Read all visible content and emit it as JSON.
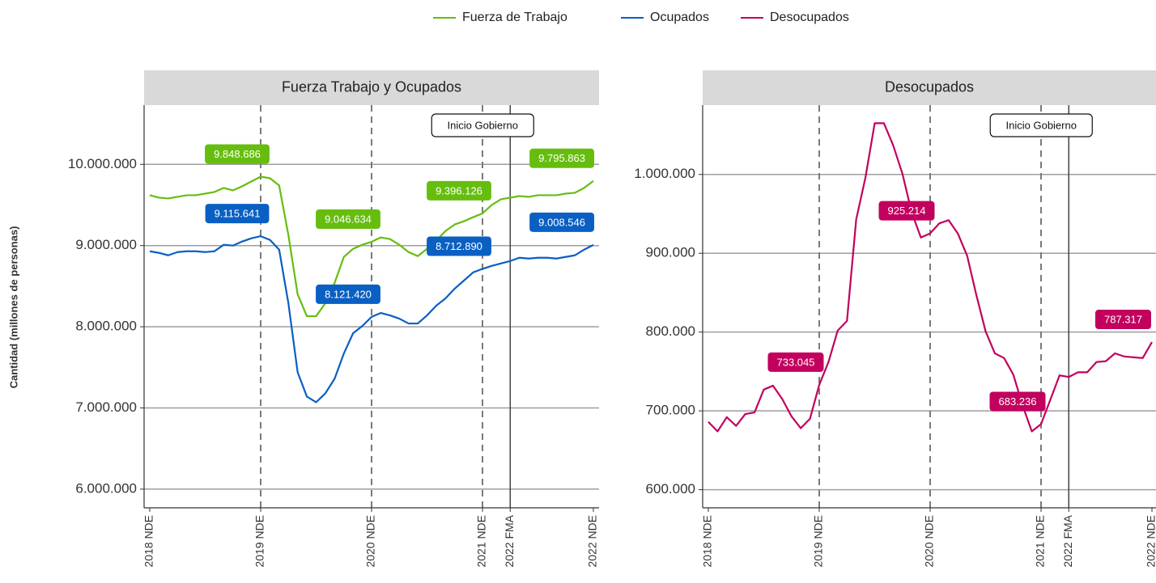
{
  "chart_data": [
    {
      "type": "line",
      "title": "Fuerza Trabajo y Ocupados",
      "ylabel": "Cantidad (millones de personas)",
      "categories": [
        "2018 NDE",
        null,
        null,
        null,
        null,
        null,
        null,
        null,
        null,
        null,
        null,
        null,
        "2019 NDE",
        null,
        null,
        null,
        null,
        null,
        null,
        null,
        null,
        null,
        null,
        null,
        "2020 NDE",
        null,
        null,
        null,
        null,
        null,
        null,
        null,
        null,
        null,
        null,
        null,
        "2021 NDE",
        null,
        null,
        "2022 FMA",
        null,
        null,
        null,
        null,
        null,
        null,
        null,
        null,
        "2022 NDE"
      ],
      "ylim": [
        5770000,
        10730000
      ],
      "yticks": [
        {
          "value": 6000000,
          "label": "6.000.000"
        },
        {
          "value": 7000000,
          "label": "7.000.000"
        },
        {
          "value": 8000000,
          "label": "8.000.000"
        },
        {
          "value": 9000000,
          "label": "9.000.000"
        },
        {
          "value": 10000000,
          "label": "10.000.000"
        }
      ],
      "grid": true,
      "dashed_lines": [
        "2019 NDE",
        "2020 NDE",
        "2021 NDE"
      ],
      "annotations": [
        {
          "text": "Inicio Gobierno",
          "x": "2022 FMA"
        }
      ],
      "series": [
        {
          "name": "Fuerza de Trabajo",
          "color": "#66bd0e",
          "values": [
            9620000,
            9590000,
            9580000,
            9600000,
            9620000,
            9620000,
            9640000,
            9660000,
            9710000,
            9680000,
            9730000,
            9790000,
            9848686,
            9830000,
            9740000,
            9130000,
            8400000,
            8130000,
            8130000,
            8290000,
            8540000,
            8860000,
            8960000,
            9010000,
            9046634,
            9100000,
            9080000,
            9010000,
            8920000,
            8870000,
            8960000,
            9060000,
            9180000,
            9260000,
            9300000,
            9350000,
            9396126,
            9500000,
            9570000,
            9590000,
            9610000,
            9600000,
            9620000,
            9620000,
            9620000,
            9640000,
            9650000,
            9710000,
            9795863
          ],
          "value_labels": [
            null,
            null,
            null,
            null,
            null,
            null,
            null,
            null,
            null,
            null,
            null,
            null,
            "9.848.686",
            null,
            null,
            null,
            null,
            null,
            null,
            null,
            null,
            null,
            null,
            null,
            "9.046.634",
            null,
            null,
            null,
            null,
            null,
            null,
            null,
            null,
            null,
            null,
            null,
            "9.396.126",
            null,
            null,
            null,
            null,
            null,
            null,
            null,
            null,
            null,
            null,
            null,
            "9.795.863"
          ]
        },
        {
          "name": "Ocupados",
          "color": "#0a5fc2",
          "values": [
            8930000,
            8910000,
            8880000,
            8920000,
            8930000,
            8930000,
            8920000,
            8930000,
            9010000,
            9000000,
            9050000,
            9090000,
            9115641,
            9070000,
            8950000,
            8290000,
            7440000,
            7140000,
            7070000,
            7180000,
            7360000,
            7670000,
            7920000,
            8010000,
            8121420,
            8170000,
            8140000,
            8100000,
            8040000,
            8040000,
            8140000,
            8260000,
            8350000,
            8470000,
            8570000,
            8670000,
            8712890,
            8750000,
            8780000,
            8810000,
            8850000,
            8840000,
            8850000,
            8850000,
            8840000,
            8860000,
            8880000,
            8950000,
            9008546
          ],
          "value_labels": [
            null,
            null,
            null,
            null,
            null,
            null,
            null,
            null,
            null,
            null,
            null,
            null,
            "9.115.641",
            null,
            null,
            null,
            null,
            null,
            null,
            null,
            null,
            null,
            null,
            null,
            "8.121.420",
            null,
            null,
            null,
            null,
            null,
            null,
            null,
            null,
            null,
            null,
            null,
            "8.712.890",
            null,
            null,
            null,
            null,
            null,
            null,
            null,
            null,
            null,
            null,
            null,
            "9.008.546"
          ]
        }
      ]
    },
    {
      "type": "line",
      "title": "Desocupados",
      "categories": [
        "2018 NDE",
        null,
        null,
        null,
        null,
        null,
        null,
        null,
        null,
        null,
        null,
        null,
        "2019 NDE",
        null,
        null,
        null,
        null,
        null,
        null,
        null,
        null,
        null,
        null,
        null,
        "2020 NDE",
        null,
        null,
        null,
        null,
        null,
        null,
        null,
        null,
        null,
        null,
        null,
        "2021 NDE",
        null,
        null,
        "2022 FMA",
        null,
        null,
        null,
        null,
        null,
        null,
        null,
        null,
        "2022 NDE"
      ],
      "ylim": [
        577000,
        1088000
      ],
      "yticks": [
        {
          "value": 600000,
          "label": "600.000"
        },
        {
          "value": 700000,
          "label": "700.000"
        },
        {
          "value": 800000,
          "label": "800.000"
        },
        {
          "value": 900000,
          "label": "900.000"
        },
        {
          "value": 1000000,
          "label": "1.000.000"
        }
      ],
      "grid": true,
      "dashed_lines": [
        "2019 NDE",
        "2020 NDE",
        "2021 NDE"
      ],
      "annotations": [
        {
          "text": "Inicio Gobierno",
          "x": "2022 FMA"
        }
      ],
      "series": [
        {
          "name": "Desocupados",
          "color": "#c2005e",
          "values": [
            686000,
            674000,
            692000,
            681000,
            696000,
            698000,
            727000,
            732000,
            715000,
            693000,
            678000,
            690000,
            733045,
            762000,
            802000,
            814000,
            943000,
            996000,
            1065000,
            1065000,
            1037000,
            1001000,
            952000,
            920000,
            925214,
            938000,
            942000,
            925000,
            897000,
            847000,
            801000,
            773000,
            767000,
            746000,
            707000,
            674000,
            683236,
            714000,
            745000,
            743000,
            749000,
            749000,
            762000,
            763000,
            773000,
            769000,
            768000,
            767000,
            787317
          ],
          "value_labels": [
            null,
            null,
            null,
            null,
            null,
            null,
            null,
            null,
            null,
            null,
            null,
            null,
            "733.045",
            null,
            null,
            null,
            null,
            null,
            null,
            null,
            null,
            null,
            null,
            null,
            "925.214",
            null,
            null,
            null,
            null,
            null,
            null,
            null,
            null,
            null,
            null,
            null,
            "683.236",
            null,
            null,
            null,
            null,
            null,
            null,
            null,
            null,
            null,
            null,
            null,
            "787.317"
          ]
        }
      ]
    }
  ]
}
